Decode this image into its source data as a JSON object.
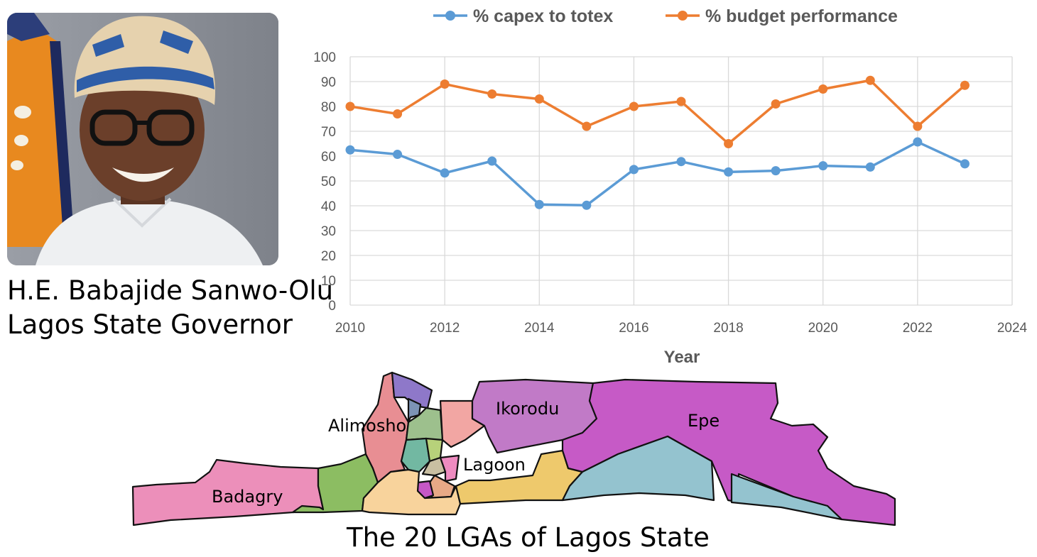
{
  "caption": {
    "line1": "H.E. Babajide Sanwo-Olu",
    "line2": "Lagos State Governor"
  },
  "map": {
    "title": "The 20 LGAs of Lagos State",
    "labels": {
      "badagry": "Badagry",
      "alimosho": "Alimosho",
      "ikorodu": "Ikorodu",
      "epe": "Epe",
      "lagoon": "Lagoon"
    }
  },
  "chart_data": {
    "type": "scatter",
    "title": "",
    "xlabel": "Year",
    "ylabel": "",
    "xlim": [
      2010,
      2024
    ],
    "ylim": [
      0,
      100
    ],
    "xticks": [
      2010,
      2012,
      2014,
      2016,
      2018,
      2020,
      2022,
      2024
    ],
    "yticks": [
      0,
      10,
      20,
      30,
      40,
      50,
      60,
      70,
      80,
      90,
      100
    ],
    "grid": true,
    "legend": "top",
    "series": [
      {
        "name": "% capex to totex",
        "color": "#5b9bd5",
        "x": [
          2010,
          2011,
          2012,
          2013,
          2014,
          2015,
          2016,
          2017,
          2018,
          2019,
          2020,
          2021,
          2022,
          2023
        ],
        "y": [
          62.5,
          60.7,
          53.2,
          58.0,
          40.5,
          40.2,
          54.6,
          57.8,
          53.6,
          54.1,
          56.1,
          55.6,
          65.7,
          56.9
        ]
      },
      {
        "name": "% budget performance",
        "color": "#ed7d31",
        "x": [
          2010,
          2011,
          2012,
          2013,
          2014,
          2015,
          2016,
          2017,
          2018,
          2019,
          2020,
          2021,
          2022,
          2023
        ],
        "y": [
          80,
          77,
          89,
          85,
          83,
          72,
          80,
          82,
          65,
          81,
          87,
          90.5,
          72,
          88.5
        ]
      }
    ]
  }
}
